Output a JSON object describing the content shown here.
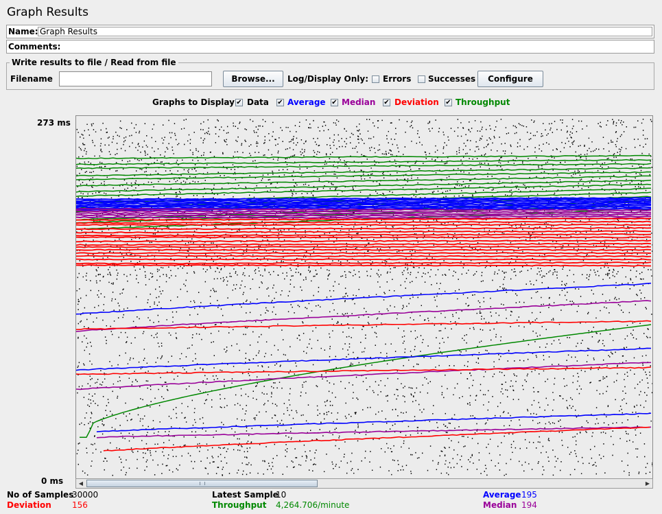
{
  "window": {
    "title": "Graph Results"
  },
  "name_field": {
    "label": "Name:",
    "value": "Graph Results"
  },
  "comments_field": {
    "label": "Comments:"
  },
  "file_panel": {
    "legend": "Write results to file / Read from file",
    "filename_label": "Filename",
    "filename_value": "",
    "browse_label": "Browse...",
    "log_display_label": "Log/Display Only:",
    "errors_label": "Errors",
    "successes_label": "Successes",
    "configure_label": "Configure",
    "errors_checked": false,
    "successes_checked": false
  },
  "graphs_to_display": {
    "label": "Graphs to Display",
    "items": [
      {
        "label": "Data",
        "color": "#000000",
        "checked": true
      },
      {
        "label": "Average",
        "color": "#0000ff",
        "checked": true
      },
      {
        "label": "Median",
        "color": "#990099",
        "checked": true
      },
      {
        "label": "Deviation",
        "color": "#ff0000",
        "checked": true
      },
      {
        "label": "Throughput",
        "color": "#008800",
        "checked": true
      }
    ]
  },
  "chart_data": {
    "type": "line",
    "ymax_label": "273 ms",
    "ymin_label": "0 ms",
    "ylim": [
      0,
      273
    ],
    "series": [
      {
        "name": "Data",
        "color": "#000000"
      },
      {
        "name": "Average",
        "color": "#0000ff"
      },
      {
        "name": "Median",
        "color": "#990099"
      },
      {
        "name": "Deviation",
        "color": "#ff0000"
      },
      {
        "name": "Throughput",
        "color": "#008800"
      }
    ]
  },
  "stats": {
    "samples_label": "No of Samples",
    "samples_value": "30000",
    "deviation_label": "Deviation",
    "deviation_value": "156",
    "latest_label": "Latest Sample",
    "latest_value": "10",
    "throughput_label": "Throughput",
    "throughput_value": "4,264.706/minute",
    "average_label": "Average",
    "average_value": "195",
    "median_label": "Median",
    "median_value": "194"
  },
  "colors": {
    "data": "#000000",
    "average": "#0000ff",
    "median": "#990099",
    "deviation": "#ff0000",
    "throughput": "#008800"
  }
}
